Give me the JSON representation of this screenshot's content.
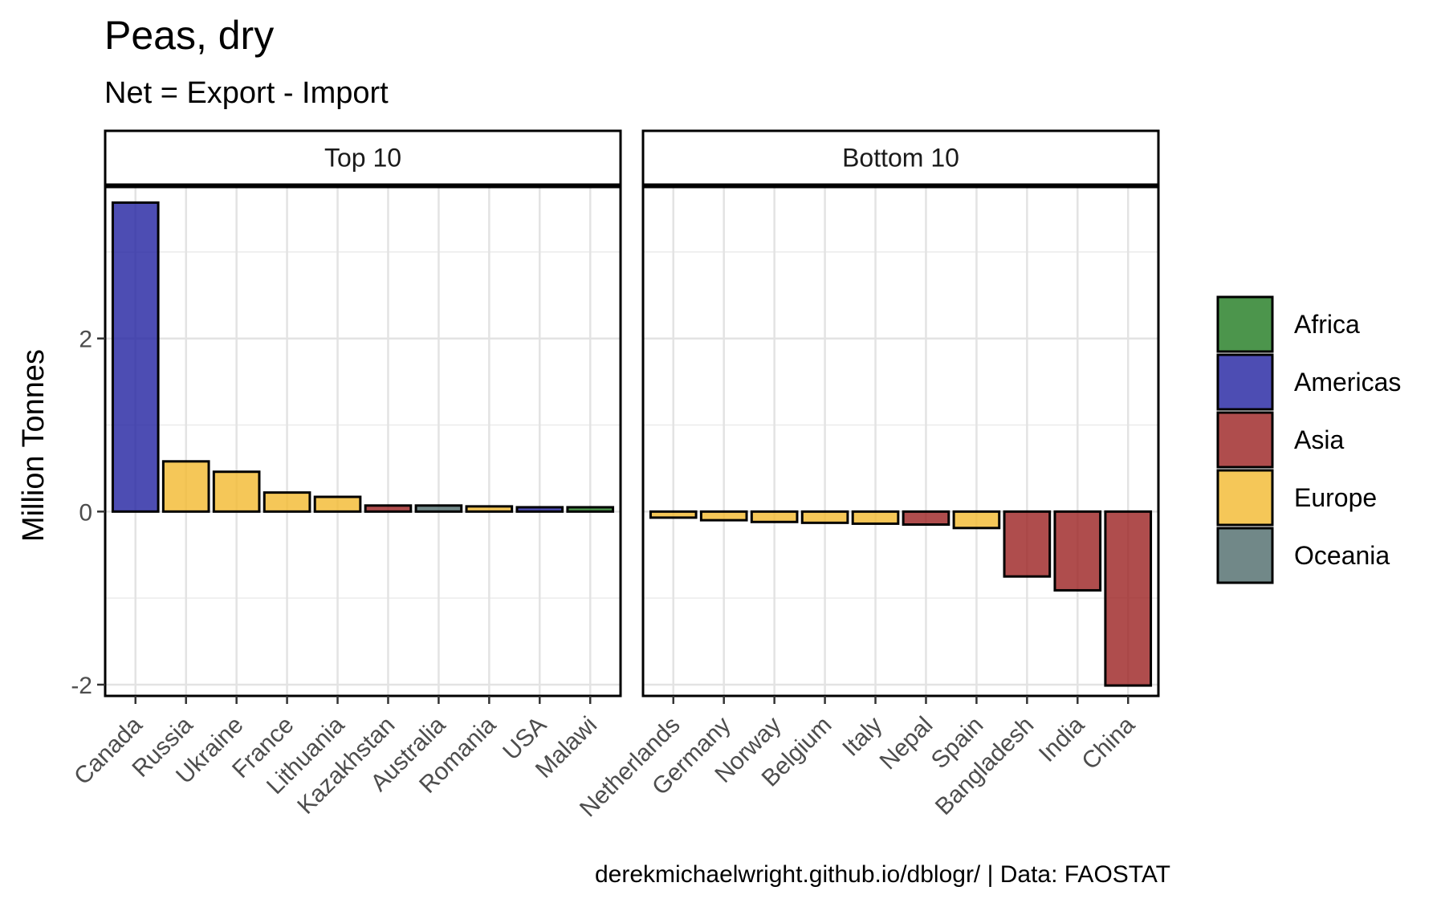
{
  "chart_data": {
    "type": "bar",
    "title": "Peas, dry",
    "subtitle": "Net = Export - Import",
    "ylabel": "Million Tonnes",
    "xlabel": "",
    "ylim": [
      -2.13,
      3.75
    ],
    "yticks": [
      -2,
      0,
      2
    ],
    "grid": true,
    "legend_position": "right",
    "caption": "derekmichaelwright.github.io/dblogr/ | Data: FAOSTAT",
    "regions": [
      {
        "name": "Africa",
        "color": "#1f7a1f"
      },
      {
        "name": "Americas",
        "color": "#2020a0"
      },
      {
        "name": "Asia",
        "color": "#9b2020"
      },
      {
        "name": "Europe",
        "color": "#f2b92e"
      },
      {
        "name": "Oceania",
        "color": "#4d6a6a"
      }
    ],
    "panels": [
      {
        "label": "Top 10",
        "categories": [
          "Canada",
          "Russia",
          "Ukraine",
          "France",
          "Lithuania",
          "Kazakhstan",
          "Australia",
          "Romania",
          "USA",
          "Malawi"
        ],
        "values": [
          3.57,
          0.58,
          0.46,
          0.22,
          0.17,
          0.07,
          0.07,
          0.06,
          0.05,
          0.05
        ],
        "regions": [
          "Americas",
          "Europe",
          "Europe",
          "Europe",
          "Europe",
          "Asia",
          "Oceania",
          "Europe",
          "Americas",
          "Africa"
        ]
      },
      {
        "label": "Bottom 10",
        "categories": [
          "Netherlands",
          "Germany",
          "Norway",
          "Belgium",
          "Italy",
          "Nepal",
          "Spain",
          "Bangladesh",
          "India",
          "China"
        ],
        "values": [
          -0.07,
          -0.1,
          -0.12,
          -0.13,
          -0.14,
          -0.15,
          -0.19,
          -0.75,
          -0.91,
          -2.01
        ],
        "regions": [
          "Europe",
          "Europe",
          "Europe",
          "Europe",
          "Europe",
          "Asia",
          "Europe",
          "Asia",
          "Asia",
          "Asia"
        ]
      }
    ]
  }
}
